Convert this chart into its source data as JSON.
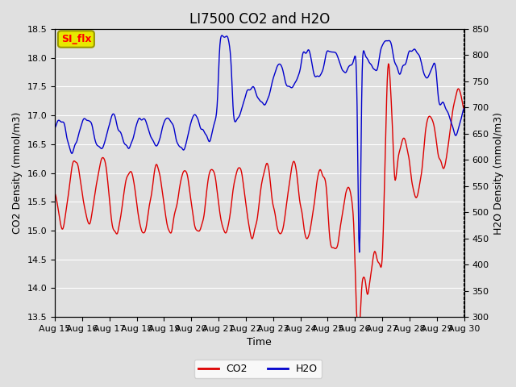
{
  "title": "LI7500 CO2 and H2O",
  "xlabel": "Time",
  "ylabel_left": "CO2 Density (mmol/m3)",
  "ylabel_right": "H2O Density (mmol/m3)",
  "annotation_text": "SI_flx",
  "annotation_bg": "#e8e800",
  "annotation_border": "#999900",
  "legend_co2_label": "CO2",
  "legend_h2o_label": "H2O",
  "co2_color": "#dd0000",
  "h2o_color": "#0000cc",
  "ylim_left": [
    13.5,
    18.5
  ],
  "ylim_right": [
    300,
    850
  ],
  "background_color": "#e0e0e0",
  "plot_bg_color": "#e0e0e0",
  "grid_color": "#ffffff",
  "title_fontsize": 12,
  "label_fontsize": 9,
  "tick_fontsize": 8,
  "x_tick_labels": [
    "Aug 15",
    "Aug 16",
    "Aug 17",
    "Aug 18",
    "Aug 19",
    "Aug 20",
    "Aug 21",
    "Aug 22",
    "Aug 23",
    "Aug 24",
    "Aug 25",
    "Aug 26",
    "Aug 27",
    "Aug 28",
    "Aug 29",
    "Aug 30"
  ],
  "n_days": 15,
  "seed": 42
}
